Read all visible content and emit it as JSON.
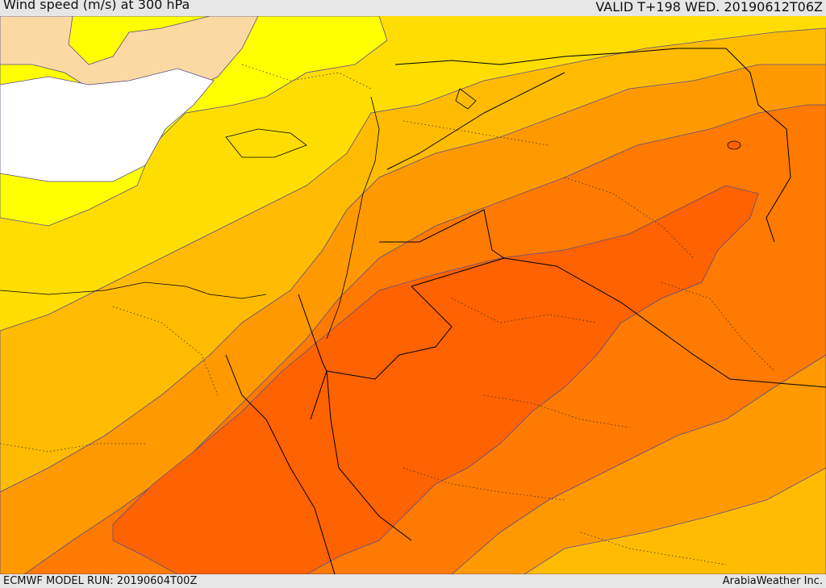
{
  "header": {
    "title": "Wind speed (m/s) at 300 hPa",
    "valid_time": "VALID T+198 WED. 20190612T06Z"
  },
  "footer": {
    "model_run": "ECMWF MODEL RUN: 20190604T00Z",
    "credit": "ArabiaWeather Inc."
  },
  "colors": {
    "land_pale": "#fbd9a3",
    "sea_white": "#ffffff",
    "band_yellow_bright": "#ffff00",
    "band_yellow": "#ffdd00",
    "band_amber": "#ffbb00",
    "band_orange_light": "#ff9900",
    "band_orange": "#ff7a00",
    "band_orange_dark": "#ff6200",
    "contour": "#5a4e8a",
    "border": "#000000"
  }
}
